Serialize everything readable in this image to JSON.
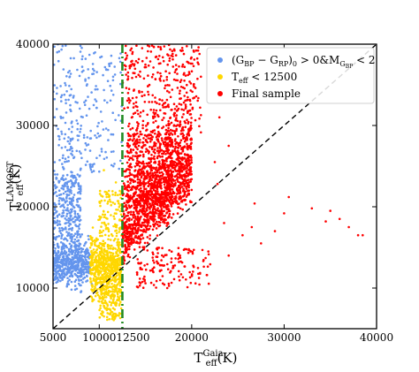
{
  "chart_data": {
    "type": "scatter",
    "title": "",
    "xlabel": {
      "base": "T",
      "sub": "eff",
      "sup": "Gaia",
      "unit": "(K)"
    },
    "ylabel": {
      "base": "T",
      "sub": "eff",
      "sup": "LAMOST",
      "unit": "(K)"
    },
    "xlim": [
      5000,
      40000
    ],
    "ylim": [
      5000,
      40000
    ],
    "x_ticks": [
      5000,
      10000,
      20000,
      30000,
      40000
    ],
    "x_ticks_shifted": [
      12500
    ],
    "y_ticks": [
      10000,
      20000,
      30000,
      40000
    ],
    "grid": false,
    "legend_position": "top-right",
    "reference_lines": [
      {
        "name": "one-to-one",
        "from": [
          5000,
          5000
        ],
        "to": [
          40000,
          40000
        ],
        "style": "dashed",
        "color": "#000000"
      },
      {
        "name": "cutoff",
        "x": 12500,
        "style": "dashdot",
        "color": "#228b22"
      }
    ],
    "series": [
      {
        "name": "(G_BP − G_RP)_0 > 0 & M_G_BP < 2",
        "legend_label": {
          "pre": "(G",
          "s1": "BP",
          "mid1": " − G",
          "s2": "RP",
          "mid2": ")",
          "s3": "0",
          "mid3": " > 0&M",
          "s4": "G",
          "s5": "BP",
          "post": " < 2"
        },
        "color": "#6495ed",
        "clusters": [
          {
            "x_range": [
              5000,
              9000
            ],
            "y_mean": 13000,
            "y_sd": 1200,
            "n": 500
          },
          {
            "x_range": [
              5000,
              8000
            ],
            "y_range": [
              15000,
              24000
            ],
            "n": 300
          },
          {
            "x_range": [
              5000,
              10000
            ],
            "y_range": [
              24000,
              33000
            ],
            "n": 120
          },
          {
            "x_range": [
              5000,
              10000
            ],
            "y_range": [
              33000,
              40000
            ],
            "n": 70
          },
          {
            "x_range": [
              10000,
              12500
            ],
            "y_range": [
              24000,
              39000
            ],
            "n": 55
          }
        ],
        "points": [
          [
            7000,
            9800
          ],
          [
            6500,
            10200
          ],
          [
            8000,
            9500
          ],
          [
            9200,
            10500
          ],
          [
            6800,
            27000
          ],
          [
            8500,
            35500
          ],
          [
            11500,
            36000
          ],
          [
            10300,
            30500
          ]
        ]
      },
      {
        "name": "T_eff < 12500",
        "legend_label": {
          "pre": "T",
          "sub": "eff",
          "post": " < 12500"
        },
        "color": "#ffd700",
        "clusters": [
          {
            "x_range": [
              9000,
              12400
            ],
            "y_mean": 12500,
            "y_sd": 1800,
            "n": 600
          },
          {
            "x_range": [
              10000,
              12400
            ],
            "y_range": [
              6000,
              10000
            ],
            "n": 130
          },
          {
            "x_range": [
              10000,
              12400
            ],
            "y_range": [
              15000,
              22000
            ],
            "n": 110
          }
        ],
        "points": [
          [
            10500,
            24500
          ],
          [
            11800,
            23000
          ]
        ]
      },
      {
        "name": "Final sample",
        "legend_label": {
          "pre": "Final sample"
        },
        "color": "#ff0000",
        "clusters": [
          {
            "x_range": [
              12500,
              20000
            ],
            "y_line": [
              1.0,
              1.25
            ],
            "y_spread": 4500,
            "n": 1400
          },
          {
            "x_range": [
              13000,
              18000
            ],
            "y_range": [
              20000,
              29000
            ],
            "n": 450
          },
          {
            "x_range": [
              12500,
              21000
            ],
            "y_range": [
              29000,
              40000
            ],
            "n": 320
          },
          {
            "x_range": [
              14000,
              22000
            ],
            "y_range": [
              10000,
              15000
            ],
            "n": 150
          }
        ],
        "points": [
          [
            26500,
            17500
          ],
          [
            26800,
            20400
          ],
          [
            27500,
            15500
          ],
          [
            29000,
            17000
          ],
          [
            30500,
            21200
          ],
          [
            30000,
            19200
          ],
          [
            33000,
            19800
          ],
          [
            34500,
            18200
          ],
          [
            35000,
            19500
          ],
          [
            37000,
            17500
          ],
          [
            38000,
            16500
          ],
          [
            38500,
            16500
          ],
          [
            36000,
            18500
          ],
          [
            22800,
            22800
          ],
          [
            23500,
            18000
          ],
          [
            24000,
            14000
          ],
          [
            25500,
            16500
          ],
          [
            21800,
            14500
          ],
          [
            22500,
            25500
          ],
          [
            24000,
            27500
          ],
          [
            23000,
            31000
          ],
          [
            21000,
            36000
          ]
        ]
      }
    ]
  }
}
